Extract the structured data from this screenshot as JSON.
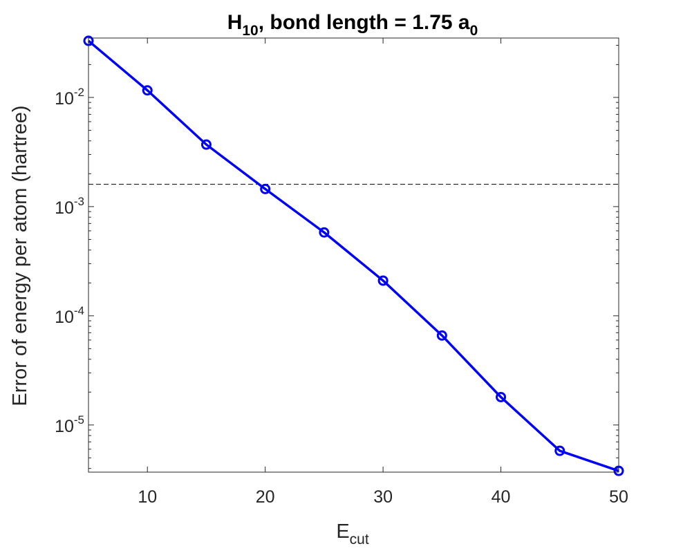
{
  "chart_data": {
    "type": "line",
    "title": {
      "main": "H",
      "sub": "10",
      "rest": ", bond length = 1.75 a",
      "rest_sub": "0"
    },
    "xlabel": {
      "main": "E",
      "sub": "cut"
    },
    "ylabel": "Error of energy per atom (hartree)",
    "xlim": [
      5,
      50
    ],
    "ylim": [
      3.7e-06,
      0.035
    ],
    "yscale": "log",
    "grid": false,
    "legend": "none",
    "xticks": [
      10,
      20,
      30,
      40,
      50
    ],
    "xtick_labels": [
      "10",
      "20",
      "30",
      "40",
      "50"
    ],
    "yticks": [
      1e-05,
      0.0001,
      0.001,
      0.01
    ],
    "ytick_labels": [
      {
        "base": "10",
        "exp": "-5"
      },
      {
        "base": "10",
        "exp": "-4"
      },
      {
        "base": "10",
        "exp": "-3"
      },
      {
        "base": "10",
        "exp": "-2"
      }
    ],
    "series": [
      {
        "x": [
          5,
          10,
          15,
          20,
          25,
          30,
          35,
          40,
          45,
          50
        ],
        "y": [
          0.033,
          0.0116,
          0.0037,
          0.00145,
          0.00058,
          0.00021,
          6.6e-05,
          1.8e-05,
          5.8e-06,
          3.8e-06
        ],
        "color": "#0000ff",
        "marker": "circle"
      }
    ],
    "reference_line": {
      "y": 0.0016,
      "style": "dashed",
      "color": "#000000"
    }
  }
}
